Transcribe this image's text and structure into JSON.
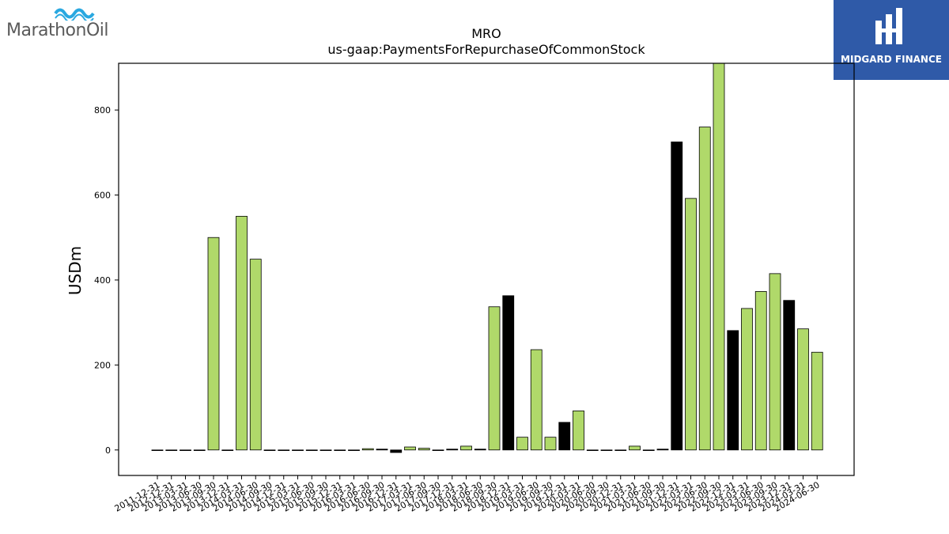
{
  "logos": {
    "left_text": "MarathonOil",
    "right_text": "MIDGARD FINANCE"
  },
  "colors": {
    "bar_default": "#b0d96a",
    "bar_highlight": "#000000",
    "axes": "#000000",
    "logo_right_bg": "#2f5aa8",
    "logo_left_wave": "#29a8e0"
  },
  "chart_data": {
    "type": "bar",
    "title": "MRO",
    "subtitle": "us-gaap:PaymentsForRepurchaseOfCommonStock",
    "xlabel": "",
    "ylabel": "USDm",
    "ylim": [
      -60,
      910
    ],
    "yticks": [
      0,
      200,
      400,
      600,
      800
    ],
    "grid": false,
    "categories": [
      "2011-12-31",
      "2012-12-31",
      "2013-03-31",
      "2013-06-30",
      "2013-09-30",
      "2013-12-31",
      "2014-03-31",
      "2014-06-30",
      "2014-09-30",
      "2014-12-31",
      "2015-03-31",
      "2015-06-30",
      "2015-09-30",
      "2015-12-31",
      "2016-03-31",
      "2016-06-30",
      "2016-09-30",
      "2016-12-31",
      "2017-03-31",
      "2017-06-30",
      "2017-09-30",
      "2017-12-31",
      "2018-03-31",
      "2018-06-30",
      "2018-09-30",
      "2018-12-31",
      "2019-03-31",
      "2019-06-30",
      "2019-09-30",
      "2019-12-31",
      "2020-03-31",
      "2020-06-30",
      "2020-09-30",
      "2020-12-31",
      "2021-03-31",
      "2021-06-30",
      "2021-09-30",
      "2021-12-31",
      "2022-03-31",
      "2022-06-30",
      "2022-09-30",
      "2022-12-31",
      "2023-03-31",
      "2023-06-30",
      "2023-09-30",
      "2023-12-31",
      "2024-03-31",
      "2024-06-30"
    ],
    "values": [
      0,
      0,
      0,
      0,
      500,
      0,
      550,
      449,
      0,
      0,
      0,
      0,
      0,
      0,
      0,
      3,
      2,
      -6,
      7,
      4,
      0,
      2,
      9,
      2,
      337,
      363,
      30,
      236,
      30,
      65,
      92,
      0,
      0,
      0,
      9,
      0,
      2,
      725,
      592,
      760,
      910,
      281,
      333,
      373,
      415,
      352,
      285,
      230
    ],
    "highlight": [
      false,
      false,
      false,
      false,
      false,
      false,
      false,
      false,
      false,
      false,
      false,
      false,
      false,
      false,
      false,
      false,
      true,
      true,
      false,
      false,
      false,
      true,
      false,
      true,
      false,
      true,
      false,
      false,
      false,
      true,
      false,
      true,
      true,
      false,
      false,
      true,
      true,
      true,
      false,
      false,
      false,
      true,
      false,
      false,
      false,
      true,
      false,
      false
    ]
  }
}
